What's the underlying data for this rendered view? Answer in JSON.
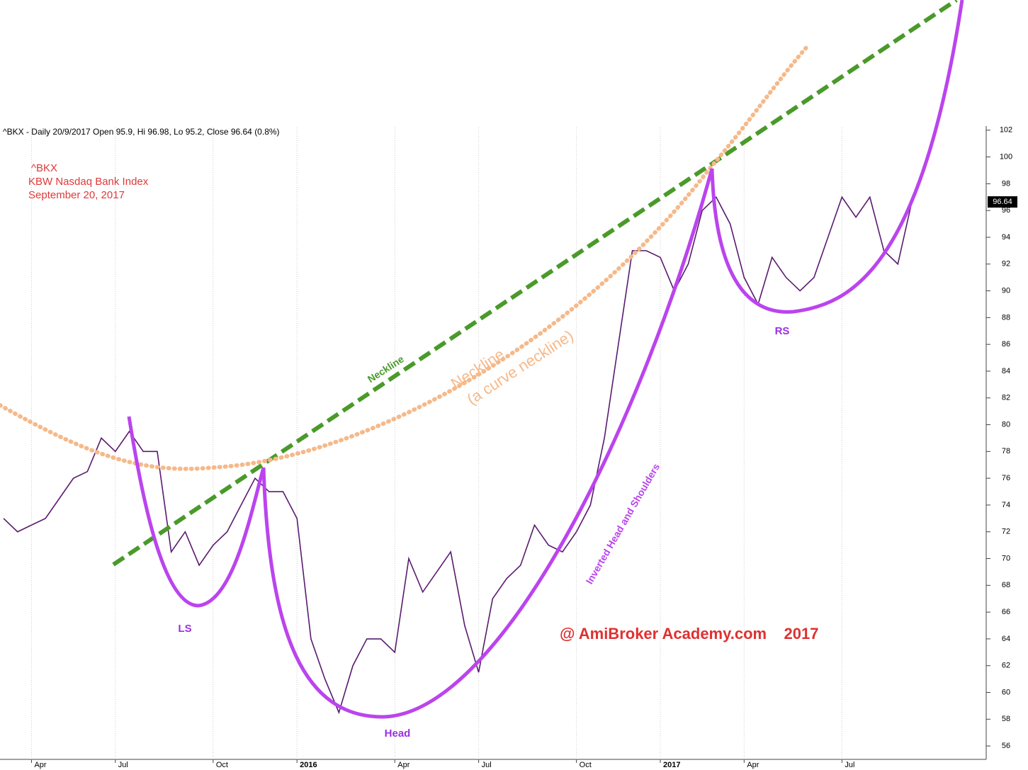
{
  "chart_data": {
    "type": "line",
    "title": "^BKX - Daily 20/9/2017 Open 95.9, Hi 96.98, Lo 95.2, Close 96.64 (0.8%)",
    "annotations": [
      "^BKX",
      "KBW Nasdaq Bank Index",
      "September 20, 2017",
      "Neckline",
      "Neckline",
      "(a curve neckline)",
      "Inverted Head and Shoulders",
      "LS",
      "Head",
      "RS",
      "@ AmiBroker Academy.com    2017"
    ],
    "categories": [
      null,
      null,
      "Apr",
      null,
      null,
      null,
      null,
      null,
      "Jul",
      null,
      null,
      null,
      null,
      null,
      null,
      "Oct",
      null,
      null,
      null,
      null,
      null,
      "2016",
      null,
      null,
      null,
      null,
      null,
      null,
      "Apr",
      null,
      null,
      null,
      null,
      null,
      "Jul",
      null,
      null,
      null,
      null,
      null,
      null,
      "Oct",
      null,
      null,
      null,
      null,
      null,
      "2017",
      null,
      null,
      null,
      null,
      null,
      "Apr",
      null,
      null,
      null,
      null,
      null,
      null,
      "Jul",
      null,
      null,
      null,
      null,
      null
    ],
    "series": [
      {
        "name": "^BKX",
        "color": "#5a1a6e",
        "values": [
          73,
          72,
          72.5,
          73,
          74.5,
          76,
          76.5,
          79,
          78,
          79.5,
          78,
          78,
          70.5,
          72,
          69.5,
          71,
          72,
          74,
          76,
          75,
          75,
          73,
          64,
          61,
          58.5,
          62,
          64,
          64,
          63,
          70,
          67.5,
          69,
          70.5,
          65,
          61.5,
          67,
          68.5,
          69.5,
          72.5,
          71,
          70.5,
          72,
          74,
          79,
          86,
          93,
          93,
          92.5,
          90,
          92,
          96,
          97,
          95,
          91,
          89,
          92.5,
          91,
          90,
          91,
          94,
          97,
          95.5,
          97,
          93,
          92,
          96.64
        ]
      }
    ],
    "ylim": [
      55,
      102.2
    ],
    "yticks": [
      56,
      58,
      60,
      62,
      64,
      66,
      68,
      70,
      72,
      74,
      76,
      78,
      80,
      82,
      84,
      86,
      88,
      90,
      92,
      94,
      96,
      98,
      100,
      102
    ],
    "grid": "x"
  }
}
